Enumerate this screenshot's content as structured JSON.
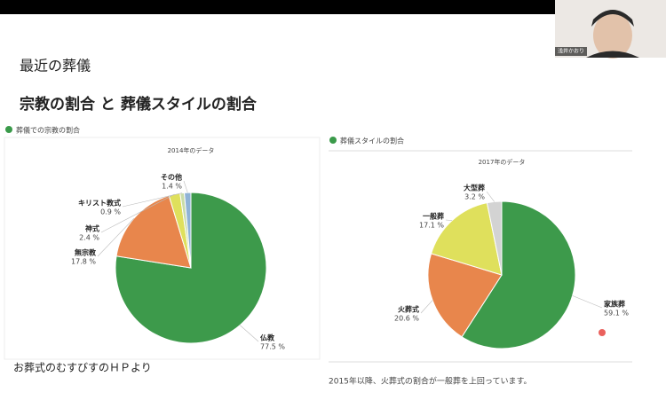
{
  "participant": "浅井かおり",
  "header": {
    "title": "最近の葬儀",
    "subtitle": "宗教の割合 と 葬儀スタイルの割合"
  },
  "source": "お葬式のむすびすのＨＰより",
  "note": "2015年以降、火葬式の割合が一般葬を上回っています。",
  "chart_data": [
    {
      "type": "pie",
      "heading": "葬儀での宗教の割合",
      "title": "2014年のデータ",
      "categories": [
        "仏教",
        "無宗教",
        "神式",
        "キリスト教式",
        "その他"
      ],
      "values": [
        77.5,
        17.8,
        2.4,
        0.9,
        1.4
      ],
      "value_labels": [
        "77.5 %",
        "17.8 %",
        "2.4 %",
        "0.9 %",
        "1.4 %"
      ],
      "colors": [
        "#3d9a4b",
        "#e8864c",
        "#dfe05c",
        "#c9dca8",
        "#8fb3d6"
      ]
    },
    {
      "type": "pie",
      "heading": "葬儀スタイルの割合",
      "title": "2017年のデータ",
      "categories": [
        "家族葬",
        "火葬式",
        "一般葬",
        "大型葬"
      ],
      "values": [
        59.1,
        20.6,
        17.1,
        3.2
      ],
      "value_labels": [
        "59.1 %",
        "20.6 %",
        "17.1 %",
        "3.2 %"
      ],
      "colors": [
        "#3d9a4b",
        "#e8864c",
        "#dfe05c",
        "#d3d3d3"
      ]
    }
  ]
}
